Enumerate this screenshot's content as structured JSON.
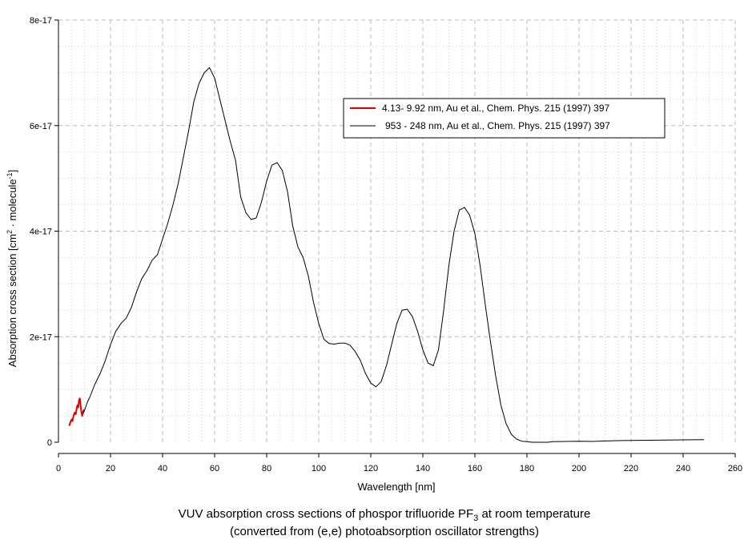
{
  "chart_data": {
    "type": "line",
    "xlabel": "Wavelength [nm]",
    "ylabel": {
      "text1": "Absorption cross section [cm",
      "sup1": "2",
      "text2": " · molecule",
      "sup2": "-1",
      "text3": "]"
    },
    "xlim": [
      0,
      260
    ],
    "ylim": [
      0,
      8e-17
    ],
    "x_ticks": [
      0,
      20,
      40,
      60,
      80,
      100,
      120,
      140,
      160,
      180,
      200,
      220,
      240,
      260
    ],
    "y_ticks": [
      0,
      2e-17,
      4e-17,
      6e-17,
      8e-17
    ],
    "y_tick_labels": [
      "0",
      "2e-17",
      "4e-17",
      "6e-17",
      "8e-17"
    ],
    "grid": true,
    "legend_position": "top-right",
    "series": [
      {
        "name": "4.13- 9.92 nm, Au et al., Chem. Phys. 215 (1997) 397",
        "color": "#e00000",
        "x": [
          4.13,
          4.6,
          5.0,
          5.4,
          5.8,
          6.2,
          6.6,
          7.0,
          7.3,
          7.6,
          7.9,
          8.2,
          8.5,
          8.8,
          9.1,
          9.4,
          9.6,
          9.92
        ],
        "y": [
          3.1e-18,
          3.8e-18,
          4.3e-18,
          4e-18,
          5e-18,
          5.6e-18,
          5.3e-18,
          6.4e-18,
          7e-18,
          6.6e-18,
          8e-18,
          8.3e-18,
          7e-18,
          5.8e-18,
          5e-18,
          5.5e-18,
          6e-18,
          6.2e-18
        ]
      },
      {
        "name": "953 - 248 nm, Au et al., Chem. Phys. 215 (1997) 397",
        "color": "#000000",
        "x": [
          9.5,
          10,
          11,
          12,
          14,
          16,
          18,
          20,
          22,
          24,
          26,
          28,
          30,
          32,
          34,
          36,
          38,
          40,
          42,
          44,
          46,
          48,
          50,
          52,
          54,
          56,
          58,
          60,
          62,
          64,
          66,
          68,
          70,
          72,
          74,
          76,
          78,
          80,
          82,
          84,
          86,
          88,
          90,
          92,
          94,
          96,
          98,
          100,
          102,
          104,
          106,
          108,
          110,
          112,
          114,
          116,
          118,
          120,
          122,
          124,
          126,
          128,
          130,
          132,
          134,
          136,
          138,
          140,
          142,
          144,
          146,
          148,
          150,
          152,
          154,
          156,
          158,
          160,
          162,
          164,
          166,
          168,
          170,
          172,
          174,
          176,
          178,
          180,
          182,
          184,
          186,
          188,
          190,
          195,
          200,
          205,
          210,
          215,
          220,
          230,
          240,
          248
        ],
        "y": [
          5.5e-18,
          6e-18,
          7.5e-18,
          8.5e-18,
          1.1e-17,
          1.3e-17,
          1.55e-17,
          1.85e-17,
          2.1e-17,
          2.25e-17,
          2.35e-17,
          2.55e-17,
          2.85e-17,
          3.1e-17,
          3.25e-17,
          3.45e-17,
          3.55e-17,
          3.85e-17,
          4.15e-17,
          4.5e-17,
          4.9e-17,
          5.4e-17,
          5.9e-17,
          6.45e-17,
          6.8e-17,
          7e-17,
          7.1e-17,
          6.9e-17,
          6.5e-17,
          6.1e-17,
          5.7e-17,
          5.35e-17,
          4.65e-17,
          4.35e-17,
          4.22e-17,
          4.25e-17,
          4.55e-17,
          4.95e-17,
          5.25e-17,
          5.3e-17,
          5.15e-17,
          4.75e-17,
          4.1e-17,
          3.7e-17,
          3.5e-17,
          3.15e-17,
          2.65e-17,
          2.25e-17,
          1.95e-17,
          1.87e-17,
          1.86e-17,
          1.88e-17,
          1.88e-17,
          1.84e-17,
          1.72e-17,
          1.55e-17,
          1.3e-17,
          1.12e-17,
          1.05e-17,
          1.15e-17,
          1.45e-17,
          1.85e-17,
          2.25e-17,
          2.5e-17,
          2.52e-17,
          2.38e-17,
          2.1e-17,
          1.75e-17,
          1.5e-17,
          1.45e-17,
          1.75e-17,
          2.5e-17,
          3.35e-17,
          4e-17,
          4.4e-17,
          4.45e-17,
          4.3e-17,
          3.95e-17,
          3.35e-17,
          2.6e-17,
          1.9e-17,
          1.25e-17,
          7e-18,
          3.5e-18,
          1.5e-18,
          6e-19,
          2e-19,
          1e-19,
          0,
          0,
          0,
          0,
          1e-19,
          1.5e-19,
          2e-19,
          1.5e-19,
          2.5e-19,
          3e-19,
          3.5e-19,
          4e-19,
          4.5e-19,
          5e-19
        ]
      }
    ],
    "caption": {
      "line1_prefix": "VUV absorption cross sections of phospor trifluoride PF",
      "line1_sub": "3",
      "line1_suffix": " at room temperature",
      "line2": "(converted from (e,e) photoabsorption oscillator strengths)"
    }
  }
}
